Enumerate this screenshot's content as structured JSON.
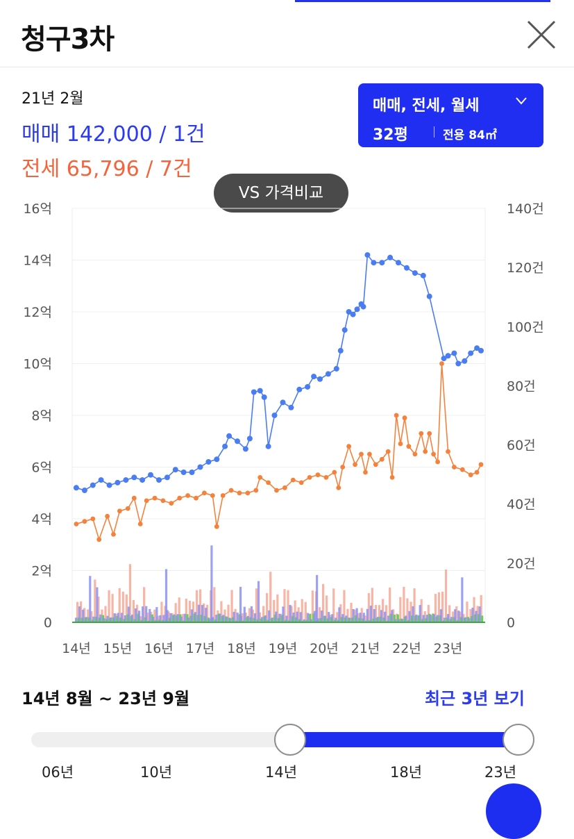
{
  "header": {
    "title": "청구3차"
  },
  "summary": {
    "date": "21년 2월",
    "sale_line": "매매 142,000 / 1건",
    "jeonse_line": "전세 65,796 / 7건"
  },
  "filter": {
    "types_label": "매매, 전세, 월세",
    "pyeong": "32평",
    "area": "전용 84㎡"
  },
  "compare_button": "VS 가격비교",
  "colors": {
    "sale": "#4a7cf2",
    "jeonse": "#f4823c",
    "accent": "#1f2ef0"
  },
  "chart_data": {
    "type": "line",
    "x_ticks": [
      "14년",
      "15년",
      "16년",
      "17년",
      "18년",
      "19년",
      "20년",
      "21년",
      "22년",
      "23년"
    ],
    "y_left_ticks": [
      "0",
      "2억",
      "4억",
      "6억",
      "8억",
      "10억",
      "12억",
      "14억",
      "16억"
    ],
    "y_right_ticks": [
      "0",
      "20건",
      "40건",
      "60건",
      "80건",
      "100건",
      "120건",
      "140건"
    ],
    "ylim_left": [
      0,
      16
    ],
    "ylim_right": [
      0,
      140
    ],
    "series": [
      {
        "name": "매매",
        "unit": "억",
        "points": [
          [
            14.6,
            5.2
          ],
          [
            14.8,
            5.1
          ],
          [
            15.0,
            5.3
          ],
          [
            15.2,
            5.5
          ],
          [
            15.4,
            5.3
          ],
          [
            15.6,
            5.4
          ],
          [
            15.8,
            5.5
          ],
          [
            16.0,
            5.6
          ],
          [
            16.2,
            5.5
          ],
          [
            16.4,
            5.7
          ],
          [
            16.6,
            5.5
          ],
          [
            16.8,
            5.6
          ],
          [
            17.0,
            5.9
          ],
          [
            17.2,
            5.8
          ],
          [
            17.4,
            5.8
          ],
          [
            17.6,
            6.0
          ],
          [
            17.8,
            6.2
          ],
          [
            18.0,
            6.3
          ],
          [
            18.2,
            6.8
          ],
          [
            18.3,
            7.2
          ],
          [
            18.5,
            7.0
          ],
          [
            18.7,
            6.7
          ],
          [
            18.8,
            7.1
          ],
          [
            18.9,
            8.9
          ],
          [
            19.05,
            8.95
          ],
          [
            19.15,
            8.7
          ],
          [
            19.25,
            6.8
          ],
          [
            19.4,
            8.0
          ],
          [
            19.6,
            8.5
          ],
          [
            19.8,
            8.3
          ],
          [
            20.0,
            9.0
          ],
          [
            20.2,
            9.1
          ],
          [
            20.35,
            9.5
          ],
          [
            20.5,
            9.4
          ],
          [
            20.7,
            9.6
          ],
          [
            20.9,
            9.8
          ],
          [
            21.0,
            10.5
          ],
          [
            21.1,
            11.3
          ],
          [
            21.2,
            12.0
          ],
          [
            21.3,
            11.9
          ],
          [
            21.4,
            12.1
          ],
          [
            21.5,
            12.3
          ],
          [
            21.55,
            12.2
          ],
          [
            21.65,
            14.2
          ],
          [
            21.8,
            13.9
          ],
          [
            22.0,
            13.9
          ],
          [
            22.2,
            14.1
          ],
          [
            22.4,
            13.9
          ],
          [
            22.6,
            13.7
          ],
          [
            22.8,
            13.5
          ],
          [
            23.0,
            13.4
          ],
          [
            23.15,
            12.6
          ],
          [
            23.5,
            10.2
          ],
          [
            23.6,
            10.3
          ],
          [
            23.75,
            10.4
          ],
          [
            23.85,
            10.0
          ],
          [
            24.0,
            10.1
          ],
          [
            24.15,
            10.4
          ],
          [
            24.3,
            10.6
          ],
          [
            24.4,
            10.5
          ]
        ]
      },
      {
        "name": "전세",
        "unit": "억",
        "points": [
          [
            14.6,
            3.8
          ],
          [
            14.8,
            3.9
          ],
          [
            15.0,
            4.0
          ],
          [
            15.15,
            3.2
          ],
          [
            15.35,
            4.1
          ],
          [
            15.5,
            3.4
          ],
          [
            15.65,
            4.3
          ],
          [
            15.85,
            4.4
          ],
          [
            16.0,
            4.8
          ],
          [
            16.15,
            3.8
          ],
          [
            16.3,
            4.7
          ],
          [
            16.5,
            4.8
          ],
          [
            16.7,
            4.7
          ],
          [
            16.9,
            4.6
          ],
          [
            17.1,
            4.8
          ],
          [
            17.3,
            4.9
          ],
          [
            17.5,
            4.8
          ],
          [
            17.7,
            5.0
          ],
          [
            17.9,
            4.9
          ],
          [
            18.0,
            3.7
          ],
          [
            18.15,
            4.9
          ],
          [
            18.35,
            5.1
          ],
          [
            18.55,
            5.0
          ],
          [
            18.75,
            5.0
          ],
          [
            18.95,
            5.1
          ],
          [
            19.05,
            5.6
          ],
          [
            19.25,
            5.4
          ],
          [
            19.45,
            5.1
          ],
          [
            19.65,
            5.2
          ],
          [
            19.85,
            5.5
          ],
          [
            20.05,
            5.4
          ],
          [
            20.25,
            5.6
          ],
          [
            20.45,
            5.7
          ],
          [
            20.65,
            5.6
          ],
          [
            20.85,
            5.8
          ],
          [
            20.95,
            5.2
          ],
          [
            21.05,
            6.0
          ],
          [
            21.2,
            6.8
          ],
          [
            21.35,
            6.1
          ],
          [
            21.5,
            6.5
          ],
          [
            21.6,
            5.8
          ],
          [
            21.7,
            6.5
          ],
          [
            21.85,
            6.1
          ],
          [
            22.0,
            6.3
          ],
          [
            22.15,
            6.6
          ],
          [
            22.25,
            5.6
          ],
          [
            22.35,
            8.0
          ],
          [
            22.45,
            6.9
          ],
          [
            22.55,
            7.9
          ],
          [
            22.65,
            6.8
          ],
          [
            22.8,
            6.5
          ],
          [
            22.95,
            7.3
          ],
          [
            23.05,
            6.6
          ],
          [
            23.15,
            7.3
          ],
          [
            23.25,
            6.5
          ],
          [
            23.35,
            6.2
          ],
          [
            23.45,
            10.0
          ],
          [
            23.6,
            6.6
          ],
          [
            23.75,
            6.0
          ],
          [
            23.95,
            5.9
          ],
          [
            24.15,
            5.7
          ],
          [
            24.3,
            5.8
          ],
          [
            24.4,
            6.1
          ]
        ]
      }
    ],
    "volume_series": [
      {
        "name": "매매 거래량",
        "color": "#8b91f2",
        "unit": "건"
      },
      {
        "name": "전세 거래량",
        "color": "#f6a895",
        "unit": "건"
      },
      {
        "name": "월세 거래량",
        "color": "#6bcc5e",
        "unit": "건"
      }
    ]
  },
  "range": {
    "label": "14년 8월 ~ 23년 9월",
    "recent_link": "최근 3년 보기",
    "ticks": [
      "06년",
      "10년",
      "14년",
      "18년",
      "23년"
    ]
  }
}
